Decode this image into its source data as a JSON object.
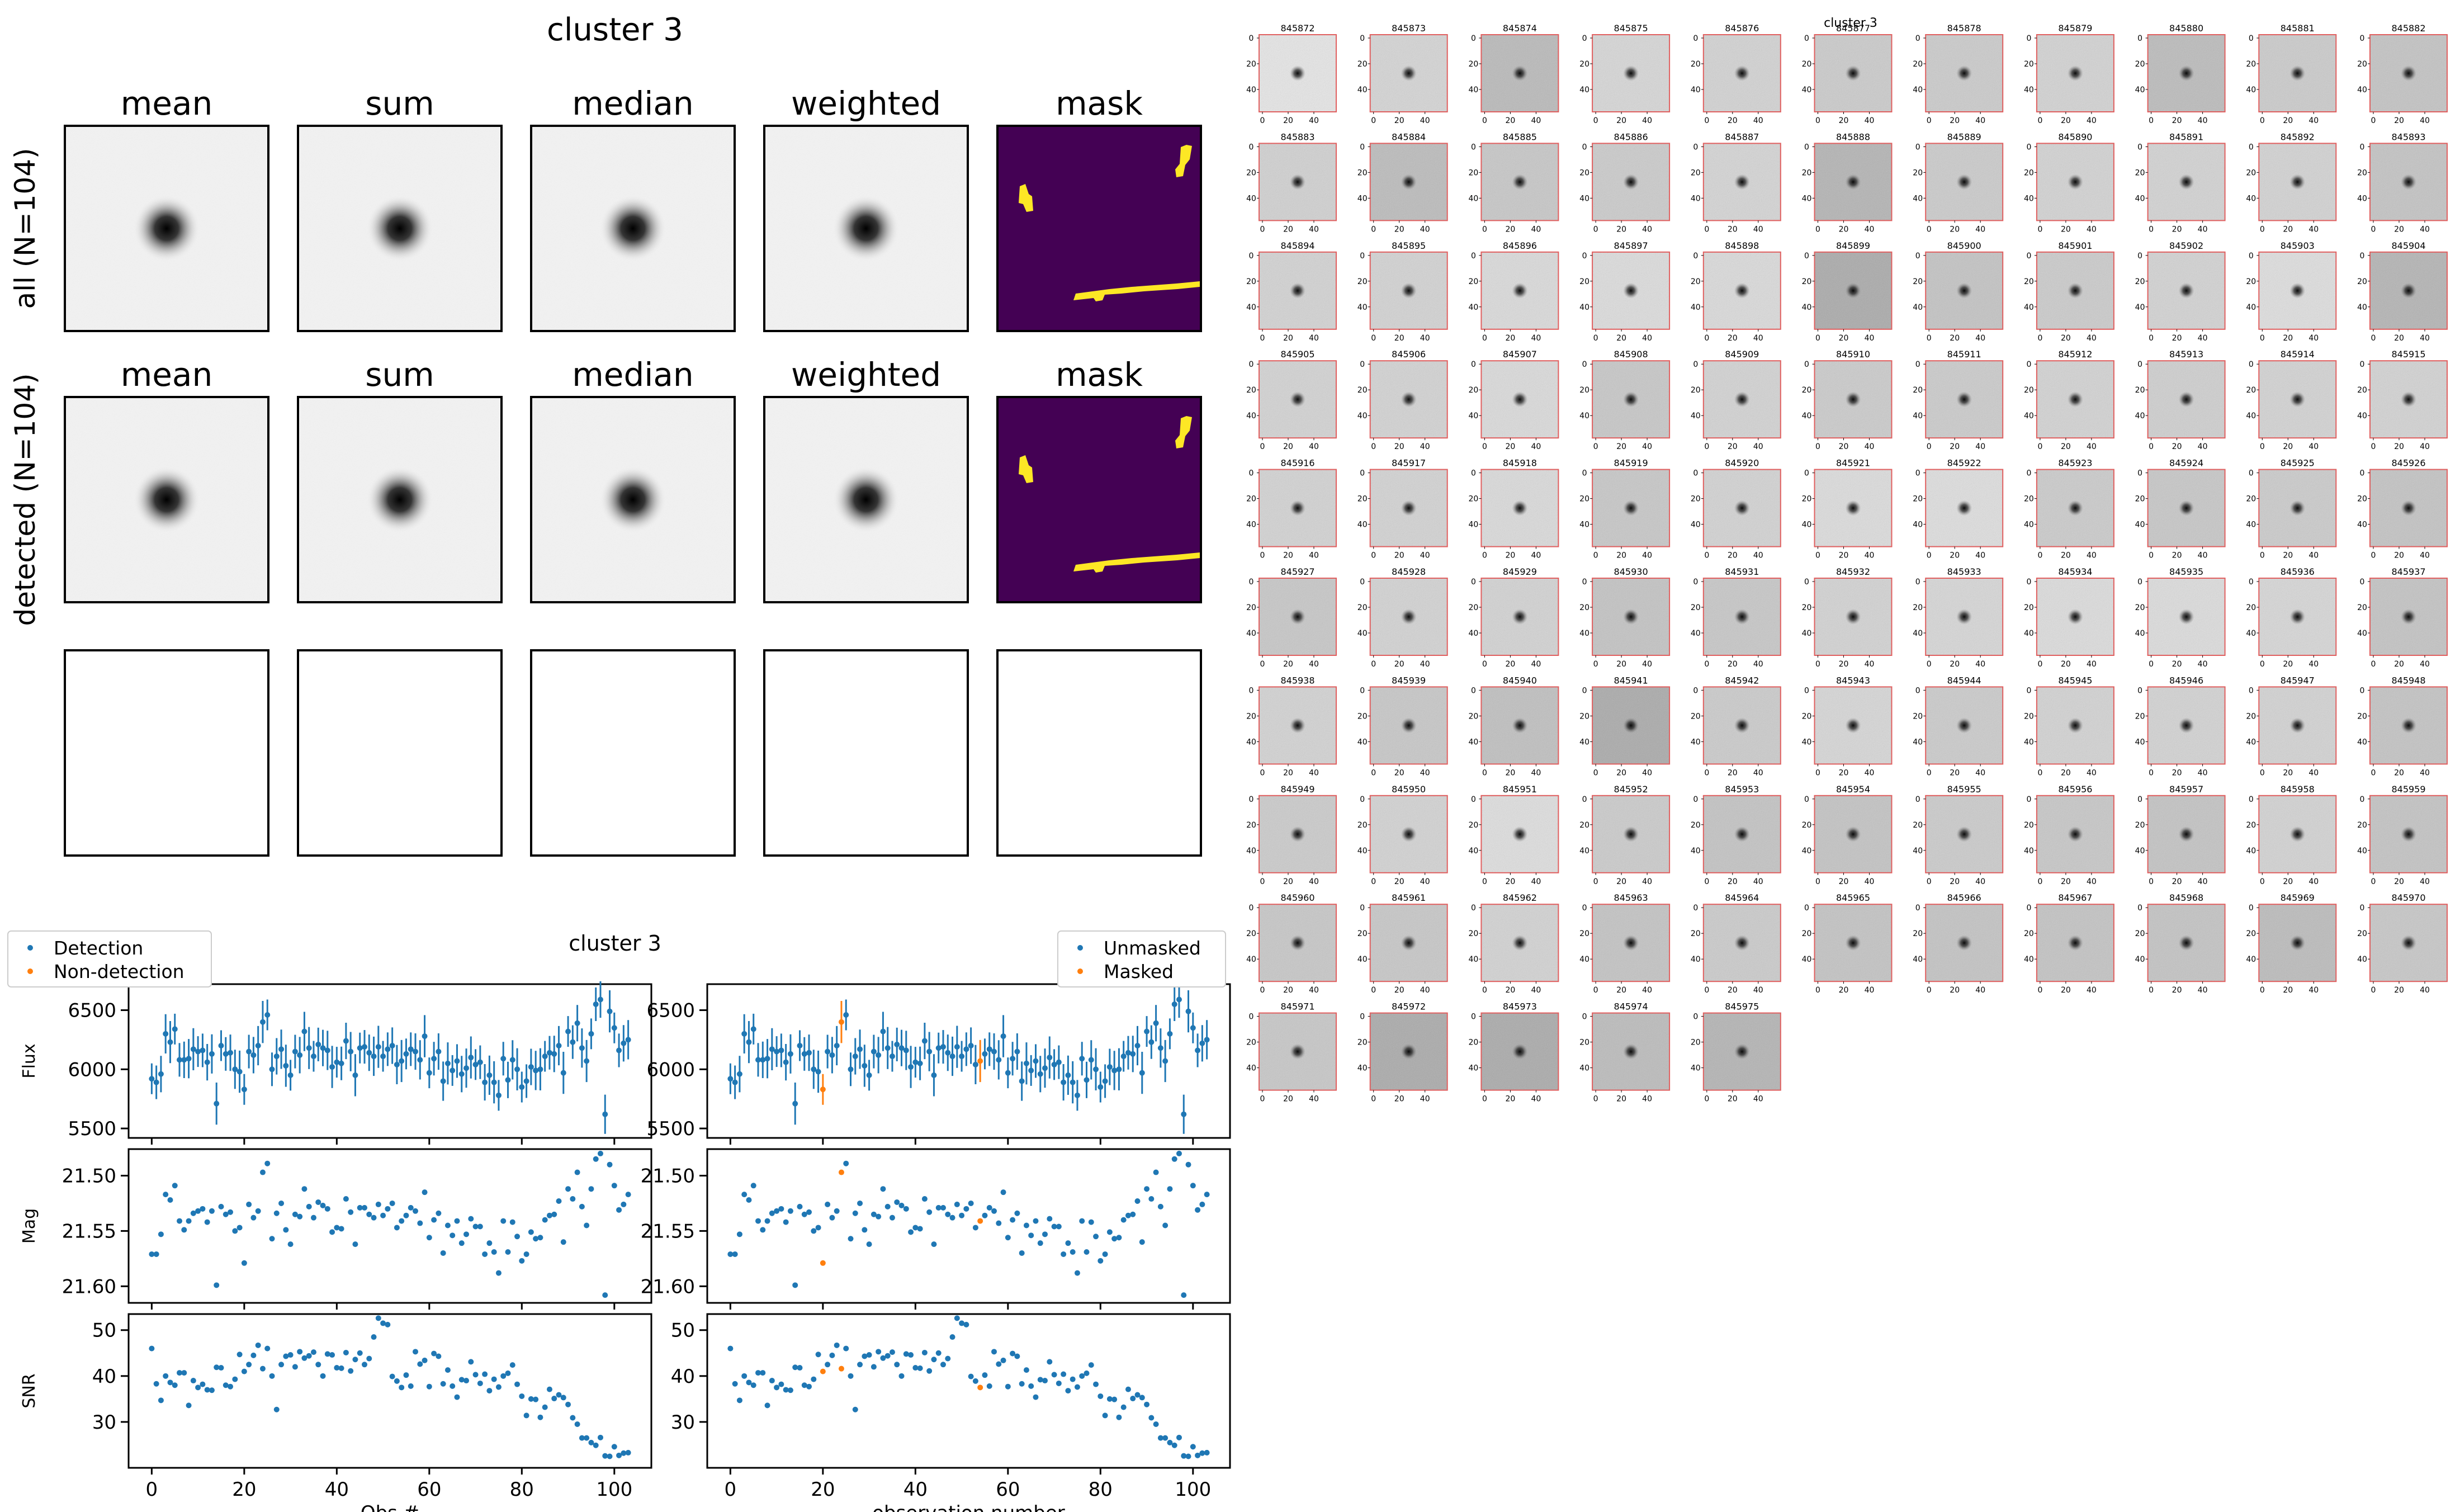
{
  "chart_data": [
    {
      "type": "heatmap",
      "title": "cluster 3",
      "columns": [
        "mean",
        "sum",
        "median",
        "weighted",
        "mask"
      ],
      "rows": [
        "all (N=104)",
        "detected (N=104)",
        ""
      ]
    },
    {
      "type": "scatter",
      "title": "cluster 3",
      "x": [
        0,
        1,
        2,
        3,
        4,
        5,
        6,
        7,
        8,
        9,
        10,
        11,
        12,
        13,
        14,
        15,
        16,
        17,
        18,
        19,
        20,
        21,
        22,
        23,
        24,
        25,
        26,
        27,
        28,
        29,
        30,
        31,
        32,
        33,
        34,
        35,
        36,
        37,
        38,
        39,
        40,
        41,
        42,
        43,
        44,
        45,
        46,
        47,
        48,
        49,
        50,
        51,
        52,
        53,
        54,
        55,
        56,
        57,
        58,
        59,
        60,
        61,
        62,
        63,
        64,
        65,
        66,
        67,
        68,
        69,
        70,
        71,
        72,
        73,
        74,
        75,
        76,
        77,
        78,
        79,
        80,
        81,
        82,
        83,
        84,
        85,
        86,
        87,
        88,
        89,
        90,
        91,
        92,
        93,
        94,
        95,
        96,
        97,
        98,
        99,
        100,
        101,
        102,
        103
      ],
      "xlim": [
        -5,
        108
      ],
      "xticks": [
        "0",
        "20",
        "40",
        "60",
        "80",
        "100"
      ],
      "xlabels": [
        "Obs #",
        "observation number"
      ],
      "legends": [
        {
          "position": "top-left",
          "entries": [
            "Detection",
            "Non-detection"
          ],
          "colors": [
            "#1f77b4",
            "#ff7f0e"
          ]
        },
        {
          "position": "top-right",
          "entries": [
            "Unmasked",
            "Masked"
          ],
          "colors": [
            "#1f77b4",
            "#ff7f0e"
          ]
        }
      ],
      "masked_indices": [
        20,
        24,
        54
      ],
      "panels": [
        {
          "ylabel": "Flux",
          "ylim": [
            5420,
            6720
          ],
          "yticks": [
            "5500",
            "6000",
            "6500"
          ],
          "invert": false,
          "errorbars": true,
          "error": 130,
          "values": [
            5920,
            5890,
            5960,
            6300,
            6230,
            6340,
            6080,
            6080,
            6090,
            6170,
            6150,
            6160,
            6060,
            6130,
            5710,
            6200,
            6130,
            6140,
            6000,
            5980,
            5830,
            6150,
            6120,
            6200,
            6400,
            6460,
            6000,
            6110,
            6170,
            6030,
            5950,
            6150,
            6120,
            6320,
            6180,
            6110,
            6210,
            6180,
            6160,
            6020,
            6060,
            6050,
            6240,
            6150,
            5950,
            6180,
            6190,
            6140,
            6110,
            6190,
            6110,
            6170,
            6200,
            6040,
            6070,
            6130,
            6170,
            6150,
            6080,
            6280,
            5970,
            6090,
            6150,
            5900,
            6050,
            5990,
            6070,
            5960,
            6010,
            6100,
            6040,
            6060,
            5890,
            5950,
            5890,
            5780,
            6090,
            5910,
            6080,
            6000,
            5850,
            5900,
            6020,
            5990,
            6000,
            6110,
            6140,
            6130,
            6200,
            5970,
            6320,
            6230,
            6390,
            6180,
            6070,
            6300,
            6550,
            6590,
            5620,
            6490,
            6350,
            6160,
            6220,
            6250
          ]
        },
        {
          "ylabel": "Mag",
          "ylim": [
            21.615,
            21.476
          ],
          "yticks": [
            "21.50",
            "21.55",
            "21.60"
          ],
          "invert": true,
          "errorbars": false,
          "values": [
            21.571,
            21.571,
            21.553,
            21.517,
            21.522,
            21.509,
            21.541,
            21.549,
            21.541,
            21.534,
            21.532,
            21.53,
            21.542,
            21.532,
            21.599,
            21.528,
            21.535,
            21.533,
            21.55,
            21.547,
            21.579,
            21.526,
            21.538,
            21.532,
            21.497,
            21.489,
            21.557,
            21.534,
            21.525,
            21.549,
            21.562,
            21.535,
            21.537,
            21.512,
            21.528,
            21.538,
            21.524,
            21.527,
            21.53,
            21.551,
            21.547,
            21.548,
            21.521,
            21.533,
            21.562,
            21.529,
            21.529,
            21.535,
            21.538,
            21.526,
            21.536,
            21.53,
            21.525,
            21.547,
            21.541,
            21.536,
            21.529,
            21.532,
            21.543,
            21.515,
            21.556,
            21.54,
            21.534,
            21.57,
            21.545,
            21.554,
            21.541,
            21.561,
            21.553,
            21.539,
            21.546,
            21.546,
            21.571,
            21.561,
            21.569,
            21.588,
            21.541,
            21.569,
            21.542,
            21.555,
            21.577,
            21.571,
            21.551,
            21.557,
            21.556,
            21.54,
            21.536,
            21.535,
            21.523,
            21.56,
            21.512,
            21.521,
            21.497,
            21.528,
            21.545,
            21.512,
            21.485,
            21.48,
            21.608,
            21.49,
            21.509,
            21.531,
            21.526,
            21.517
          ]
        },
        {
          "ylabel": "SNR",
          "ylim": [
            20,
            53.5
          ],
          "yticks": [
            "30",
            "40",
            "50"
          ],
          "invert": false,
          "errorbars": false,
          "values": [
            46.0,
            38.3,
            34.7,
            40.0,
            38.6,
            38.0,
            40.7,
            40.7,
            33.6,
            39.0,
            37.5,
            38.2,
            37.0,
            36.9,
            41.9,
            41.8,
            38.0,
            37.7,
            39.3,
            44.7,
            41.0,
            42.5,
            44.5,
            46.7,
            41.6,
            46.0,
            40.0,
            32.7,
            42.5,
            44.3,
            44.6,
            42.0,
            45.3,
            43.9,
            44.4,
            45.2,
            42.5,
            40.0,
            44.8,
            44.6,
            41.8,
            41.7,
            45.1,
            41.1,
            43.6,
            45.0,
            42.5,
            43.8,
            48.5,
            52.6,
            51.5,
            51.2,
            39.9,
            38.9,
            37.5,
            40.2,
            37.8,
            45.3,
            42.6,
            43.4,
            37.7,
            44.9,
            44.3,
            38.3,
            41.3,
            37.8,
            35.4,
            39.2,
            39.0,
            43.1,
            40.3,
            38.4,
            40.4,
            36.8,
            39.3,
            37.6,
            40.0,
            40.6,
            42.4,
            38.2,
            35.6,
            31.4,
            35.0,
            34.9,
            31.0,
            33.2,
            37.1,
            35.1,
            35.9,
            35.3,
            33.8,
            30.9,
            29.5,
            26.5,
            26.5,
            25.5,
            24.9,
            26.6,
            22.6,
            22.5,
            24.6,
            22.7,
            23.2,
            23.3
          ]
        }
      ]
    },
    {
      "type": "heatmap",
      "title": "cluster 3",
      "tile_labels": [
        "845872",
        "845873",
        "845874",
        "845875",
        "845876",
        "845877",
        "845878",
        "845879",
        "845880",
        "845881",
        "845882",
        "845883",
        "845884",
        "845885",
        "845886",
        "845887",
        "845888",
        "845889",
        "845890",
        "845891",
        "845892",
        "845893",
        "845894",
        "845895",
        "845896",
        "845897",
        "845898",
        "845899",
        "845900",
        "845901",
        "845902",
        "845903",
        "845904",
        "845905",
        "845906",
        "845907",
        "845908",
        "845909",
        "845910",
        "845911",
        "845912",
        "845913",
        "845914",
        "845915",
        "845916",
        "845917",
        "845918",
        "845919",
        "845920",
        "845921",
        "845922",
        "845923",
        "845924",
        "845925",
        "845926",
        "845927",
        "845928",
        "845929",
        "845930",
        "845931",
        "845932",
        "845933",
        "845934",
        "845935",
        "845936",
        "845937",
        "845938",
        "845939",
        "845940",
        "845941",
        "845942",
        "845943",
        "845944",
        "845945",
        "845946",
        "845947",
        "845948",
        "845949",
        "845950",
        "845951",
        "845952",
        "845953",
        "845954",
        "845955",
        "845956",
        "845957",
        "845958",
        "845959",
        "845960",
        "845961",
        "845962",
        "845963",
        "845964",
        "845965",
        "845966",
        "845967",
        "845968",
        "845969",
        "845970",
        "845971",
        "845972",
        "845973",
        "845974",
        "845975"
      ],
      "yticks": [
        "0",
        "20",
        "40"
      ],
      "xticks": [
        "0",
        "20",
        "40"
      ]
    }
  ]
}
